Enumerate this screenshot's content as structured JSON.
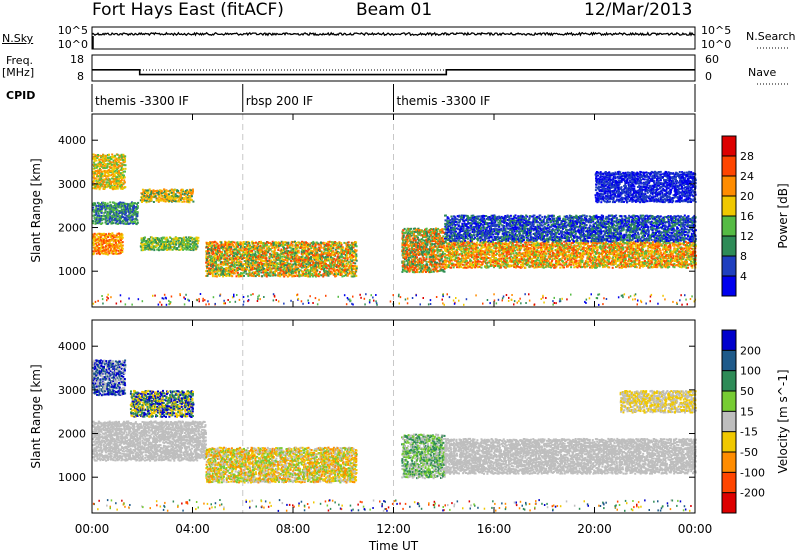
{
  "header": {
    "station": "Fort Hays East (fitACF)",
    "beam": "Beam 01",
    "date": "12/Mar/2013"
  },
  "noise_panel": {
    "left_label": "N.Sky",
    "right_label": "N.Search",
    "left_ticks": [
      "10^5",
      "10^0"
    ],
    "right_ticks": [
      "10^5",
      "10^0"
    ]
  },
  "freq_panel": {
    "left_label_1": "Freq.",
    "left_label_2": "[MHz]",
    "right_label": "Nave",
    "left_ticks": [
      "18",
      "8"
    ],
    "right_ticks": [
      "60",
      "0"
    ],
    "freq_steps_mhz": [
      {
        "t0": 0.0,
        "t1": 1.9,
        "v": 12.2
      },
      {
        "t0": 1.9,
        "t1": 14.1,
        "v": 10.0
      },
      {
        "t0": 14.1,
        "t1": 24.0,
        "v": 12.2
      }
    ]
  },
  "cpid": {
    "label": "CPID",
    "segments": [
      {
        "name": "themis -3300 IF",
        "start_h": 0
      },
      {
        "name": "rbsp 200 IF",
        "start_h": 6
      },
      {
        "name": "themis -3300 IF",
        "start_h": 12
      }
    ]
  },
  "chart_data": [
    {
      "type": "heatmap",
      "quantity": "power",
      "ylabel": "Slant Range [km]",
      "ylim": [
        180,
        4600
      ],
      "yticks": [
        "1000",
        "2000",
        "3000",
        "4000"
      ],
      "colorbar_label": "Power [dB]",
      "colorbar_ticks": [
        "4",
        "8",
        "12",
        "16",
        "20",
        "24",
        "28"
      ],
      "colorbar_colors": [
        "#0000ee",
        "#1f3fbf",
        "#2e8b57",
        "#55bb44",
        "#f0c800",
        "#ff8c00",
        "#ff4500",
        "#dd0000"
      ],
      "scatter_regions": [
        {
          "t0": 0.0,
          "t1": 1.2,
          "r0": 1400,
          "r1": 1900,
          "cores": [
            "#ff4500",
            "#ff8c00",
            "#f0c800"
          ]
        },
        {
          "t0": 0.0,
          "t1": 1.8,
          "r0": 2100,
          "r1": 2600,
          "cores": [
            "#1f3fbf",
            "#2e8b57",
            "#55bb44"
          ]
        },
        {
          "t0": 0.0,
          "t1": 1.3,
          "r0": 2900,
          "r1": 3700,
          "cores": [
            "#ff8c00",
            "#f0c800",
            "#55bb44"
          ]
        },
        {
          "t0": 1.9,
          "t1": 4.0,
          "r0": 2600,
          "r1": 2900,
          "cores": [
            "#ff8c00",
            "#f0c800",
            "#2e8b57"
          ]
        },
        {
          "t0": 1.9,
          "t1": 4.2,
          "r0": 1500,
          "r1": 1800,
          "cores": [
            "#f0c800",
            "#55bb44",
            "#2e8b57"
          ]
        },
        {
          "t0": 4.5,
          "t1": 10.5,
          "r0": 900,
          "r1": 1700,
          "cores": [
            "#ff4500",
            "#ff8c00",
            "#f0c800",
            "#55bb44",
            "#2e8b57"
          ]
        },
        {
          "t0": 12.3,
          "t1": 14.0,
          "r0": 1000,
          "r1": 2000,
          "cores": [
            "#ff4500",
            "#ff8c00",
            "#55bb44",
            "#2e8b57"
          ]
        },
        {
          "t0": 14.0,
          "t1": 24.0,
          "r0": 1100,
          "r1": 1700,
          "cores": [
            "#ff4500",
            "#ff8c00",
            "#f0c800",
            "#55bb44"
          ]
        },
        {
          "t0": 14.0,
          "t1": 24.0,
          "r0": 1700,
          "r1": 2300,
          "cores": [
            "#1f3fbf",
            "#2e8b57",
            "#0000ee"
          ]
        },
        {
          "t0": 20.0,
          "t1": 24.0,
          "r0": 2600,
          "r1": 3300,
          "cores": [
            "#1f3fbf",
            "#0000ee"
          ]
        }
      ]
    },
    {
      "type": "heatmap",
      "quantity": "velocity",
      "ylabel": "Slant Range [km]",
      "ylim": [
        180,
        4600
      ],
      "yticks": [
        "1000",
        "2000",
        "3000",
        "4000"
      ],
      "colorbar_label": "Velocity [m s^-1]",
      "colorbar_ticks": [
        "200",
        "100",
        "50",
        "15",
        "-15",
        "-50",
        "-100",
        "-200"
      ],
      "colorbar_colors": [
        "#0000cc",
        "#1e5a8a",
        "#2e8b57",
        "#77cc33",
        "#bebebe",
        "#f0c800",
        "#ff8c00",
        "#ff4500",
        "#dd0000"
      ],
      "scatter_regions": [
        {
          "t0": 0.0,
          "t1": 1.3,
          "r0": 2900,
          "r1": 3700,
          "cores": [
            "#0000cc",
            "#1e5a8a",
            "#bebebe"
          ]
        },
        {
          "t0": 1.5,
          "t1": 4.0,
          "r0": 2400,
          "r1": 3000,
          "cores": [
            "#0000cc",
            "#f0c800",
            "#2e8b57"
          ]
        },
        {
          "t0": 0.0,
          "t1": 4.5,
          "r0": 1400,
          "r1": 2300,
          "cores": [
            "#bebebe"
          ]
        },
        {
          "t0": 4.5,
          "t1": 10.5,
          "r0": 900,
          "r1": 1700,
          "cores": [
            "#bebebe",
            "#f0c800",
            "#77cc33",
            "#ff8c00"
          ]
        },
        {
          "t0": 12.3,
          "t1": 14.0,
          "r0": 1000,
          "r1": 2000,
          "cores": [
            "#77cc33",
            "#bebebe",
            "#2e8b57"
          ]
        },
        {
          "t0": 14.0,
          "t1": 24.0,
          "r0": 1100,
          "r1": 1900,
          "cores": [
            "#bebebe"
          ]
        },
        {
          "t0": 21.0,
          "t1": 24.0,
          "r0": 2500,
          "r1": 3000,
          "cores": [
            "#bebebe",
            "#f0c800"
          ]
        }
      ]
    }
  ],
  "time_axis": {
    "xlabel": "Time UT",
    "xlim_h": [
      0,
      24
    ],
    "ticks": [
      "00:00",
      "04:00",
      "08:00",
      "12:00",
      "16:00",
      "20:00",
      "00:00"
    ]
  }
}
